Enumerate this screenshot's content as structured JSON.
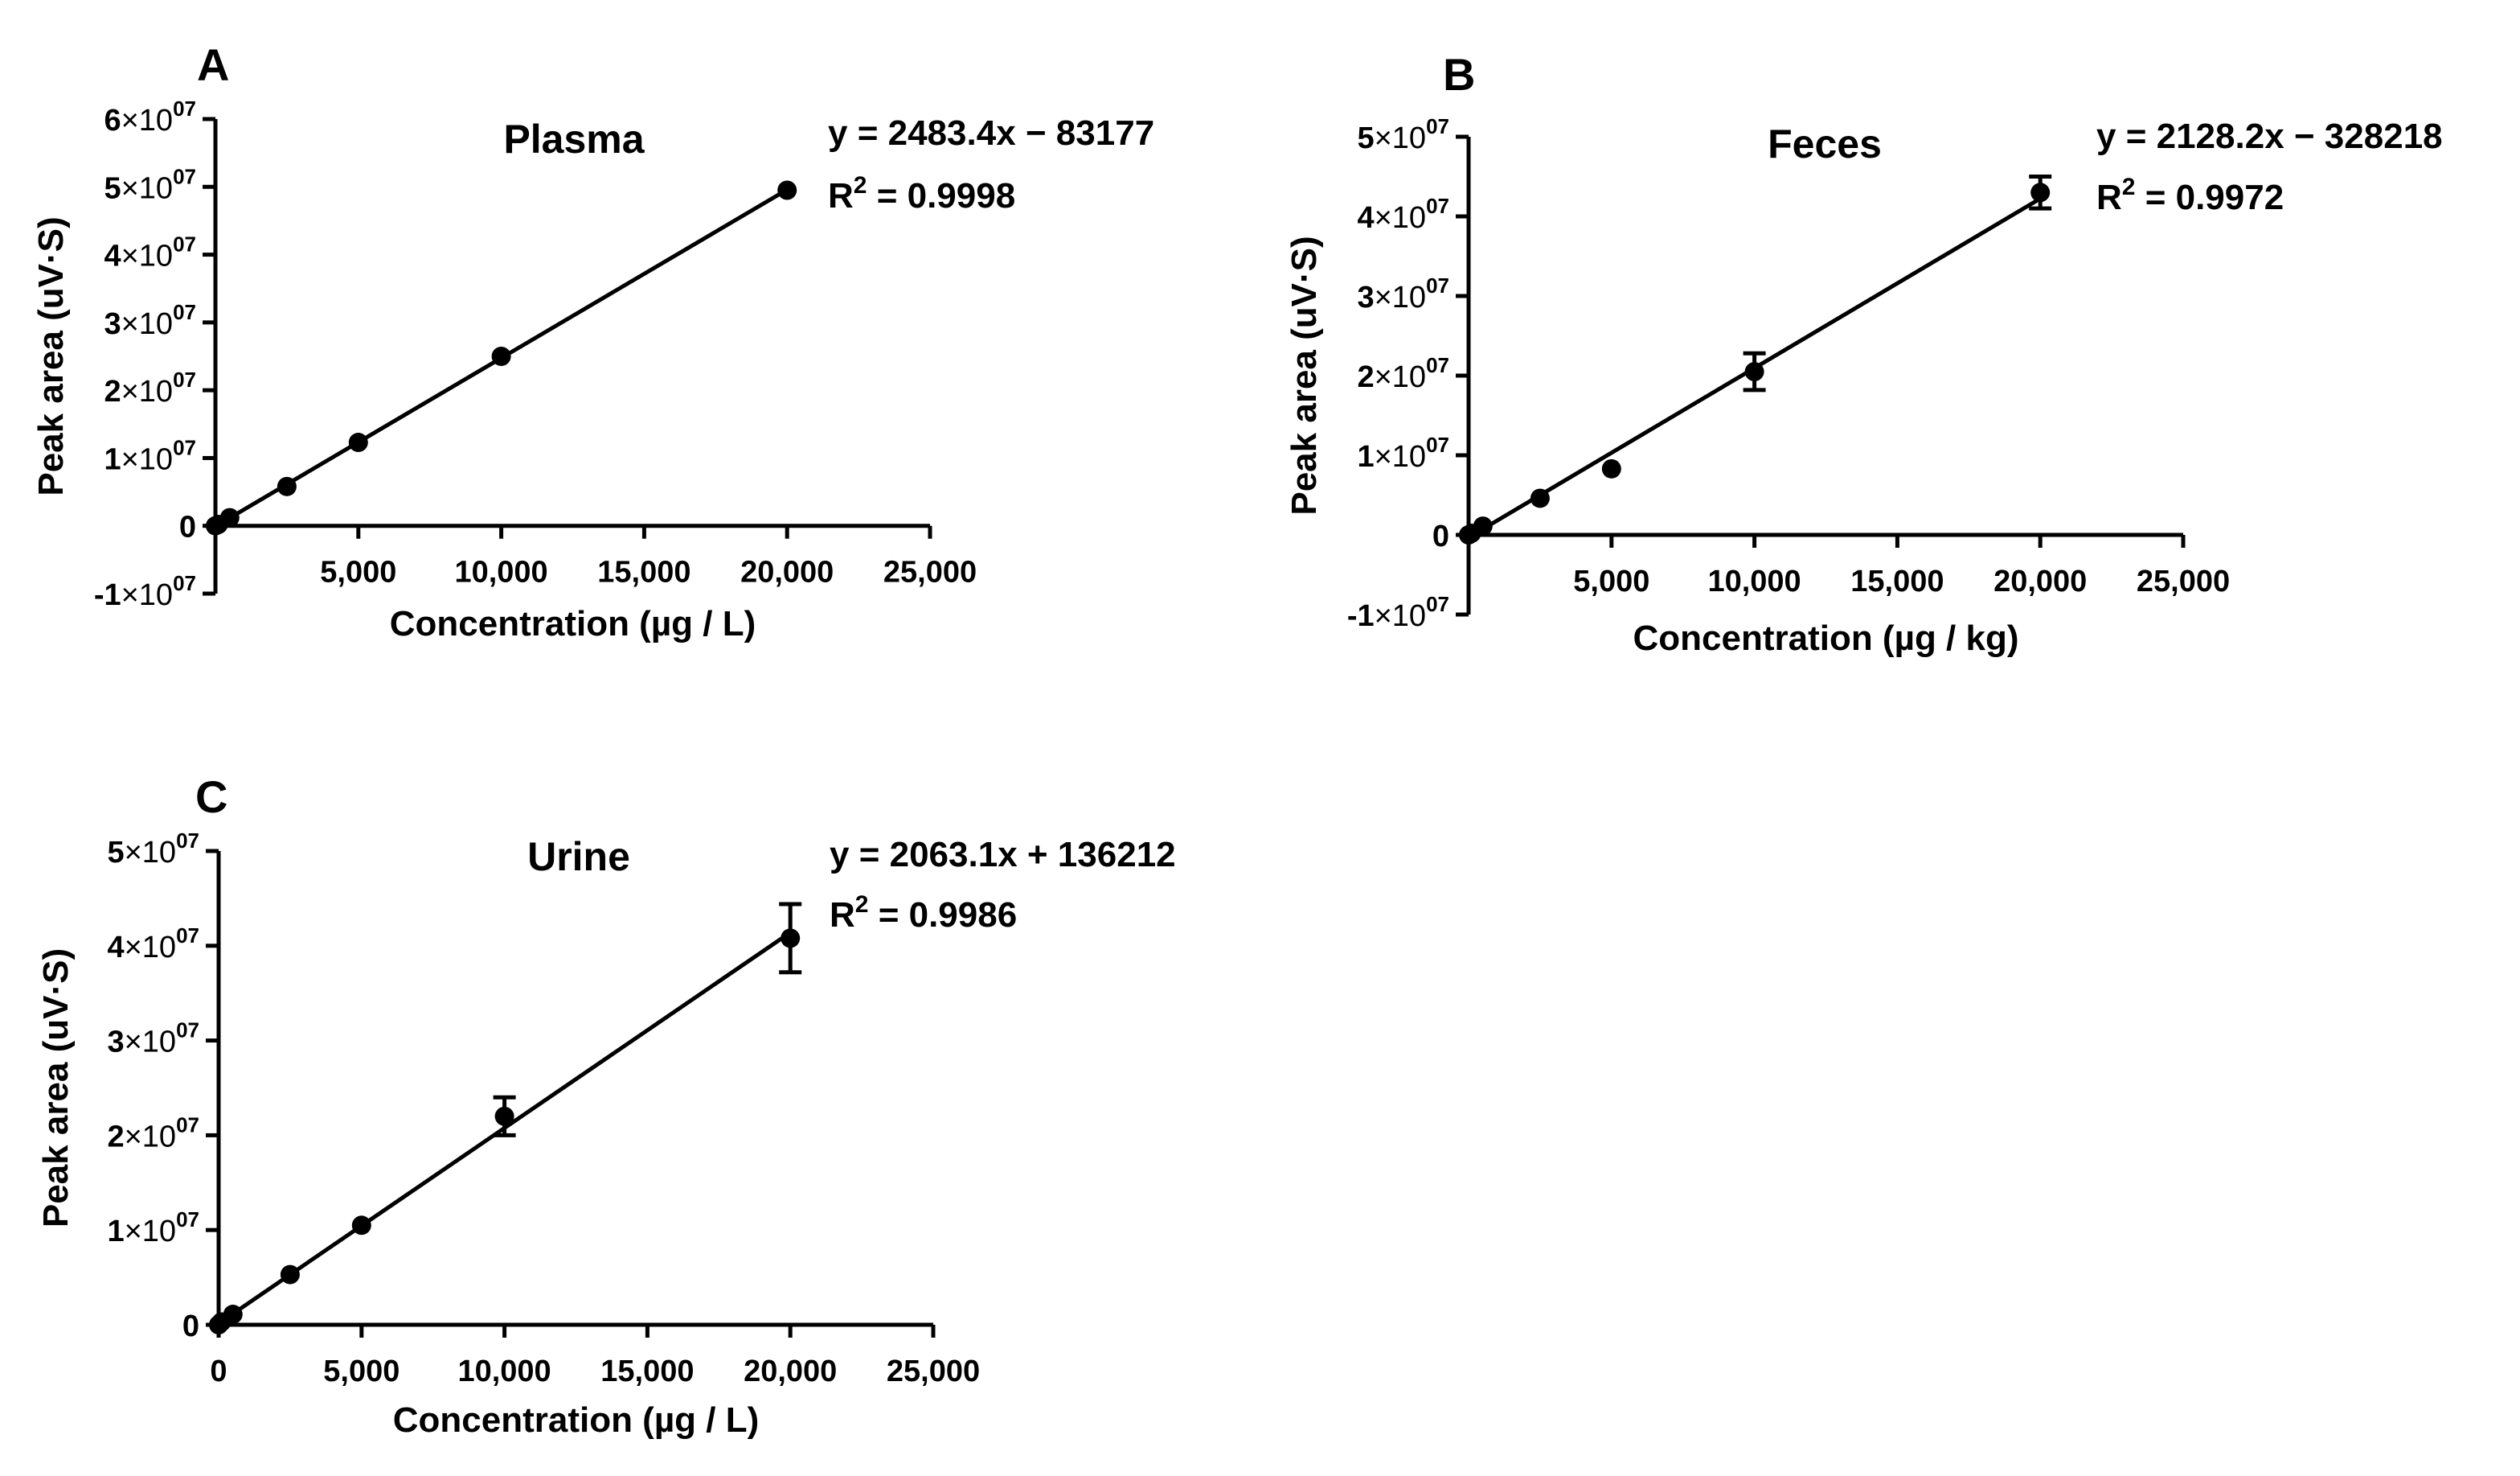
{
  "figure": {
    "colors": {
      "ink": "#000000",
      "background": "#ffffff"
    }
  },
  "chart_data": [
    {
      "id": "A",
      "type": "scatter",
      "panel_letter": "A",
      "title": "Plasma",
      "xlabel": "Concentration (µg / L)",
      "ylabel": "Peak area (uV·S)",
      "xlim": [
        0,
        25000
      ],
      "ylim": [
        -10000000,
        60000000
      ],
      "x_ticks": [
        5000,
        10000,
        15000,
        20000,
        25000
      ],
      "x_tick_labels": [
        "5,000",
        "10,000",
        "15,000",
        "20,000",
        "25,000"
      ],
      "y_ticks": [
        {
          "value": 60000000,
          "mantissa": "6",
          "base": "×10",
          "exp": "07"
        },
        {
          "value": 50000000,
          "mantissa": "5",
          "base": "×10",
          "exp": "07"
        },
        {
          "value": 40000000,
          "mantissa": "4",
          "base": "×10",
          "exp": "07"
        },
        {
          "value": 30000000,
          "mantissa": "3",
          "base": "×10",
          "exp": "07"
        },
        {
          "value": 20000000,
          "mantissa": "2",
          "base": "×10",
          "exp": "07"
        },
        {
          "value": 10000000,
          "mantissa": "1",
          "base": "×10",
          "exp": "07"
        },
        {
          "value": 0,
          "mantissa": "0",
          "base": "",
          "exp": ""
        },
        {
          "value": -10000000,
          "mantissa": "-1",
          "base": "×10",
          "exp": "07"
        }
      ],
      "points": [
        {
          "x": 0,
          "y": 0,
          "err": 0
        },
        {
          "x": 100,
          "y": 200000,
          "err": 0
        },
        {
          "x": 500,
          "y": 1200000,
          "err": 0
        },
        {
          "x": 2500,
          "y": 5800000,
          "err": 0
        },
        {
          "x": 5000,
          "y": 12300000,
          "err": 0
        },
        {
          "x": 10000,
          "y": 25000000,
          "err": 0
        },
        {
          "x": 20000,
          "y": 49500000,
          "err": 0
        }
      ],
      "fit": {
        "slope": 2483.4,
        "intercept": -83177,
        "x_range": [
          0,
          20000
        ]
      },
      "equation_text": "y = 2483.4x − 83177",
      "r2_prefix": "R",
      "r2_sup": "2",
      "r2_value": " = 0.9998"
    },
    {
      "id": "B",
      "type": "scatter",
      "panel_letter": "B",
      "title": "Feces",
      "xlabel": "Concentration (µg / kg)",
      "ylabel": "Peak area (uV·S)",
      "xlim": [
        0,
        25000
      ],
      "ylim": [
        -10000000,
        50000000
      ],
      "x_ticks": [
        5000,
        10000,
        15000,
        20000,
        25000
      ],
      "x_tick_labels": [
        "5,000",
        "10,000",
        "15,000",
        "20,000",
        "25,000"
      ],
      "y_ticks": [
        {
          "value": 50000000,
          "mantissa": "5",
          "base": "×10",
          "exp": "07"
        },
        {
          "value": 40000000,
          "mantissa": "4",
          "base": "×10",
          "exp": "07"
        },
        {
          "value": 30000000,
          "mantissa": "3",
          "base": "×10",
          "exp": "07"
        },
        {
          "value": 20000000,
          "mantissa": "2",
          "base": "×10",
          "exp": "07"
        },
        {
          "value": 10000000,
          "mantissa": "1",
          "base": "×10",
          "exp": "07"
        },
        {
          "value": 0,
          "mantissa": "0",
          "base": "",
          "exp": ""
        },
        {
          "value": -10000000,
          "mantissa": "-1",
          "base": "×10",
          "exp": "07"
        }
      ],
      "points": [
        {
          "x": 0,
          "y": 0,
          "err": 0
        },
        {
          "x": 100,
          "y": 200000,
          "err": 0
        },
        {
          "x": 500,
          "y": 1100000,
          "err": 0
        },
        {
          "x": 2500,
          "y": 4600000,
          "err": 0
        },
        {
          "x": 5000,
          "y": 8300000,
          "err": 0
        },
        {
          "x": 10000,
          "y": 20500000,
          "err": 2300000
        },
        {
          "x": 20000,
          "y": 43000000,
          "err": 2000000
        }
      ],
      "fit": {
        "slope": 2128.2,
        "intercept": -328218,
        "x_range": [
          0,
          20000
        ]
      },
      "equation_text": "y = 2128.2x − 328218",
      "r2_prefix": "R",
      "r2_sup": "2",
      "r2_value": " = 0.9972"
    },
    {
      "id": "C",
      "type": "scatter",
      "panel_letter": "C",
      "title": "Urine",
      "xlabel": "Concentration (µg / L)",
      "ylabel": "Peak area (uV·S)",
      "xlim": [
        0,
        25000
      ],
      "ylim": [
        0,
        50000000
      ],
      "x_ticks": [
        0,
        5000,
        10000,
        15000,
        20000,
        25000
      ],
      "x_tick_labels": [
        "0",
        "5,000",
        "10,000",
        "15,000",
        "20,000",
        "25,000"
      ],
      "y_ticks": [
        {
          "value": 50000000,
          "mantissa": "5",
          "base": "×10",
          "exp": "07"
        },
        {
          "value": 40000000,
          "mantissa": "4",
          "base": "×10",
          "exp": "07"
        },
        {
          "value": 30000000,
          "mantissa": "3",
          "base": "×10",
          "exp": "07"
        },
        {
          "value": 20000000,
          "mantissa": "2",
          "base": "×10",
          "exp": "07"
        },
        {
          "value": 10000000,
          "mantissa": "1",
          "base": "×10",
          "exp": "07"
        },
        {
          "value": 0,
          "mantissa": "0",
          "base": "",
          "exp": ""
        }
      ],
      "points": [
        {
          "x": 0,
          "y": 0,
          "err": 0
        },
        {
          "x": 100,
          "y": 300000,
          "err": 0
        },
        {
          "x": 500,
          "y": 1100000,
          "err": 0
        },
        {
          "x": 2500,
          "y": 5300000,
          "err": 0
        },
        {
          "x": 5000,
          "y": 10500000,
          "err": 0
        },
        {
          "x": 10000,
          "y": 22000000,
          "err": 2000000
        },
        {
          "x": 20000,
          "y": 40800000,
          "err": 3600000
        }
      ],
      "fit": {
        "slope": 2063.1,
        "intercept": 136212,
        "x_range": [
          0,
          20000
        ]
      },
      "equation_text": "y = 2063.1x + 136212",
      "r2_prefix": "R",
      "r2_sup": "2",
      "r2_value": " = 0.9986"
    }
  ]
}
